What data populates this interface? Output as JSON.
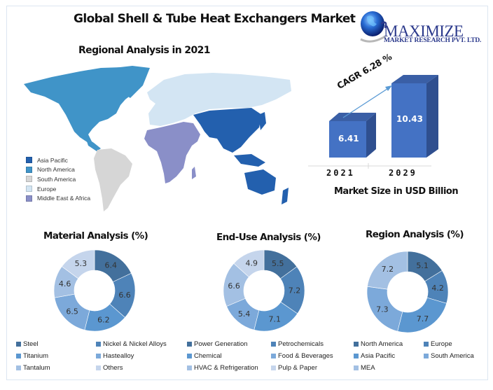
{
  "header": {
    "title": "Global Shell & Tube Heat Exchangers Market",
    "subtitle": "Regional Analysis in 2021"
  },
  "logo": {
    "icon": "globe-icon",
    "name": "MAXIMIZE",
    "tagline": "MARKET RESEARCH PVT. LTD."
  },
  "map_legend": [
    {
      "label": "Asia Pacific",
      "color": "#2360AE"
    },
    {
      "label": "North America",
      "color": "#4094C8"
    },
    {
      "label": "South America",
      "color": "#D6D6D6"
    },
    {
      "label": "Europe",
      "color": "#D3E5F3"
    },
    {
      "label": "Middle East & Africa",
      "color": "#8A8FC8"
    }
  ],
  "colors": {
    "bar_front": "#4472C4",
    "bar_side": "#2F4F8F",
    "bar_top": "#3A5FA6",
    "arrow": "#5B9BD5",
    "frame": "#DCE6F1",
    "donut": [
      "#43709C",
      "#4E83B8",
      "#5B97D0",
      "#7CA9DA",
      "#A3C0E3",
      "#C5D5EC"
    ]
  },
  "chart_data": [
    {
      "type": "bar",
      "title": "Market Size in USD Billion",
      "categories": [
        "2021",
        "2029"
      ],
      "values": [
        6.41,
        10.43
      ],
      "value_labels": [
        "6.41",
        "10.43"
      ],
      "annotation": "CAGR 6.28 %",
      "xlabel": "Market Size in USD Billion",
      "ylabel": "",
      "style": "3d-column"
    },
    {
      "type": "pie",
      "variant": "donut",
      "title": "Material Analysis (%)",
      "categories": [
        "Steel",
        "Nickel & Nickel Alloys",
        "Titanium",
        "Hastealloy",
        "Tantalum",
        "Others"
      ],
      "values": [
        6.4,
        6.6,
        6.2,
        6.5,
        4.6,
        5.3
      ],
      "value_labels": [
        "6.4",
        "6.6",
        "6.2",
        "6.5",
        "4.6",
        "5.3"
      ],
      "legend_position": "bottom"
    },
    {
      "type": "pie",
      "variant": "donut",
      "title": "End-Use Analysis (%)",
      "categories": [
        "Power Generation",
        "Petrochemicals",
        "Chemical",
        "Food & Beverages",
        "HVAC & Refrigeration",
        "Pulp & Paper"
      ],
      "values": [
        5.5,
        7.2,
        7.1,
        5.4,
        6.6,
        4.9
      ],
      "value_labels": [
        "5.5",
        "7.2",
        "7.1",
        "5.4",
        "6.6",
        "4.9"
      ],
      "legend_position": "bottom"
    },
    {
      "type": "pie",
      "variant": "donut",
      "title": "Region Analysis (%)",
      "categories": [
        "North America",
        "Europe",
        "Asia Pacific",
        "South America",
        "MEA"
      ],
      "values": [
        5.1,
        4.2,
        7.7,
        7.3,
        7.2
      ],
      "value_labels": [
        "5.1",
        "4.2",
        "7.7",
        "7.3",
        "7.2"
      ],
      "legend_position": "bottom"
    }
  ]
}
